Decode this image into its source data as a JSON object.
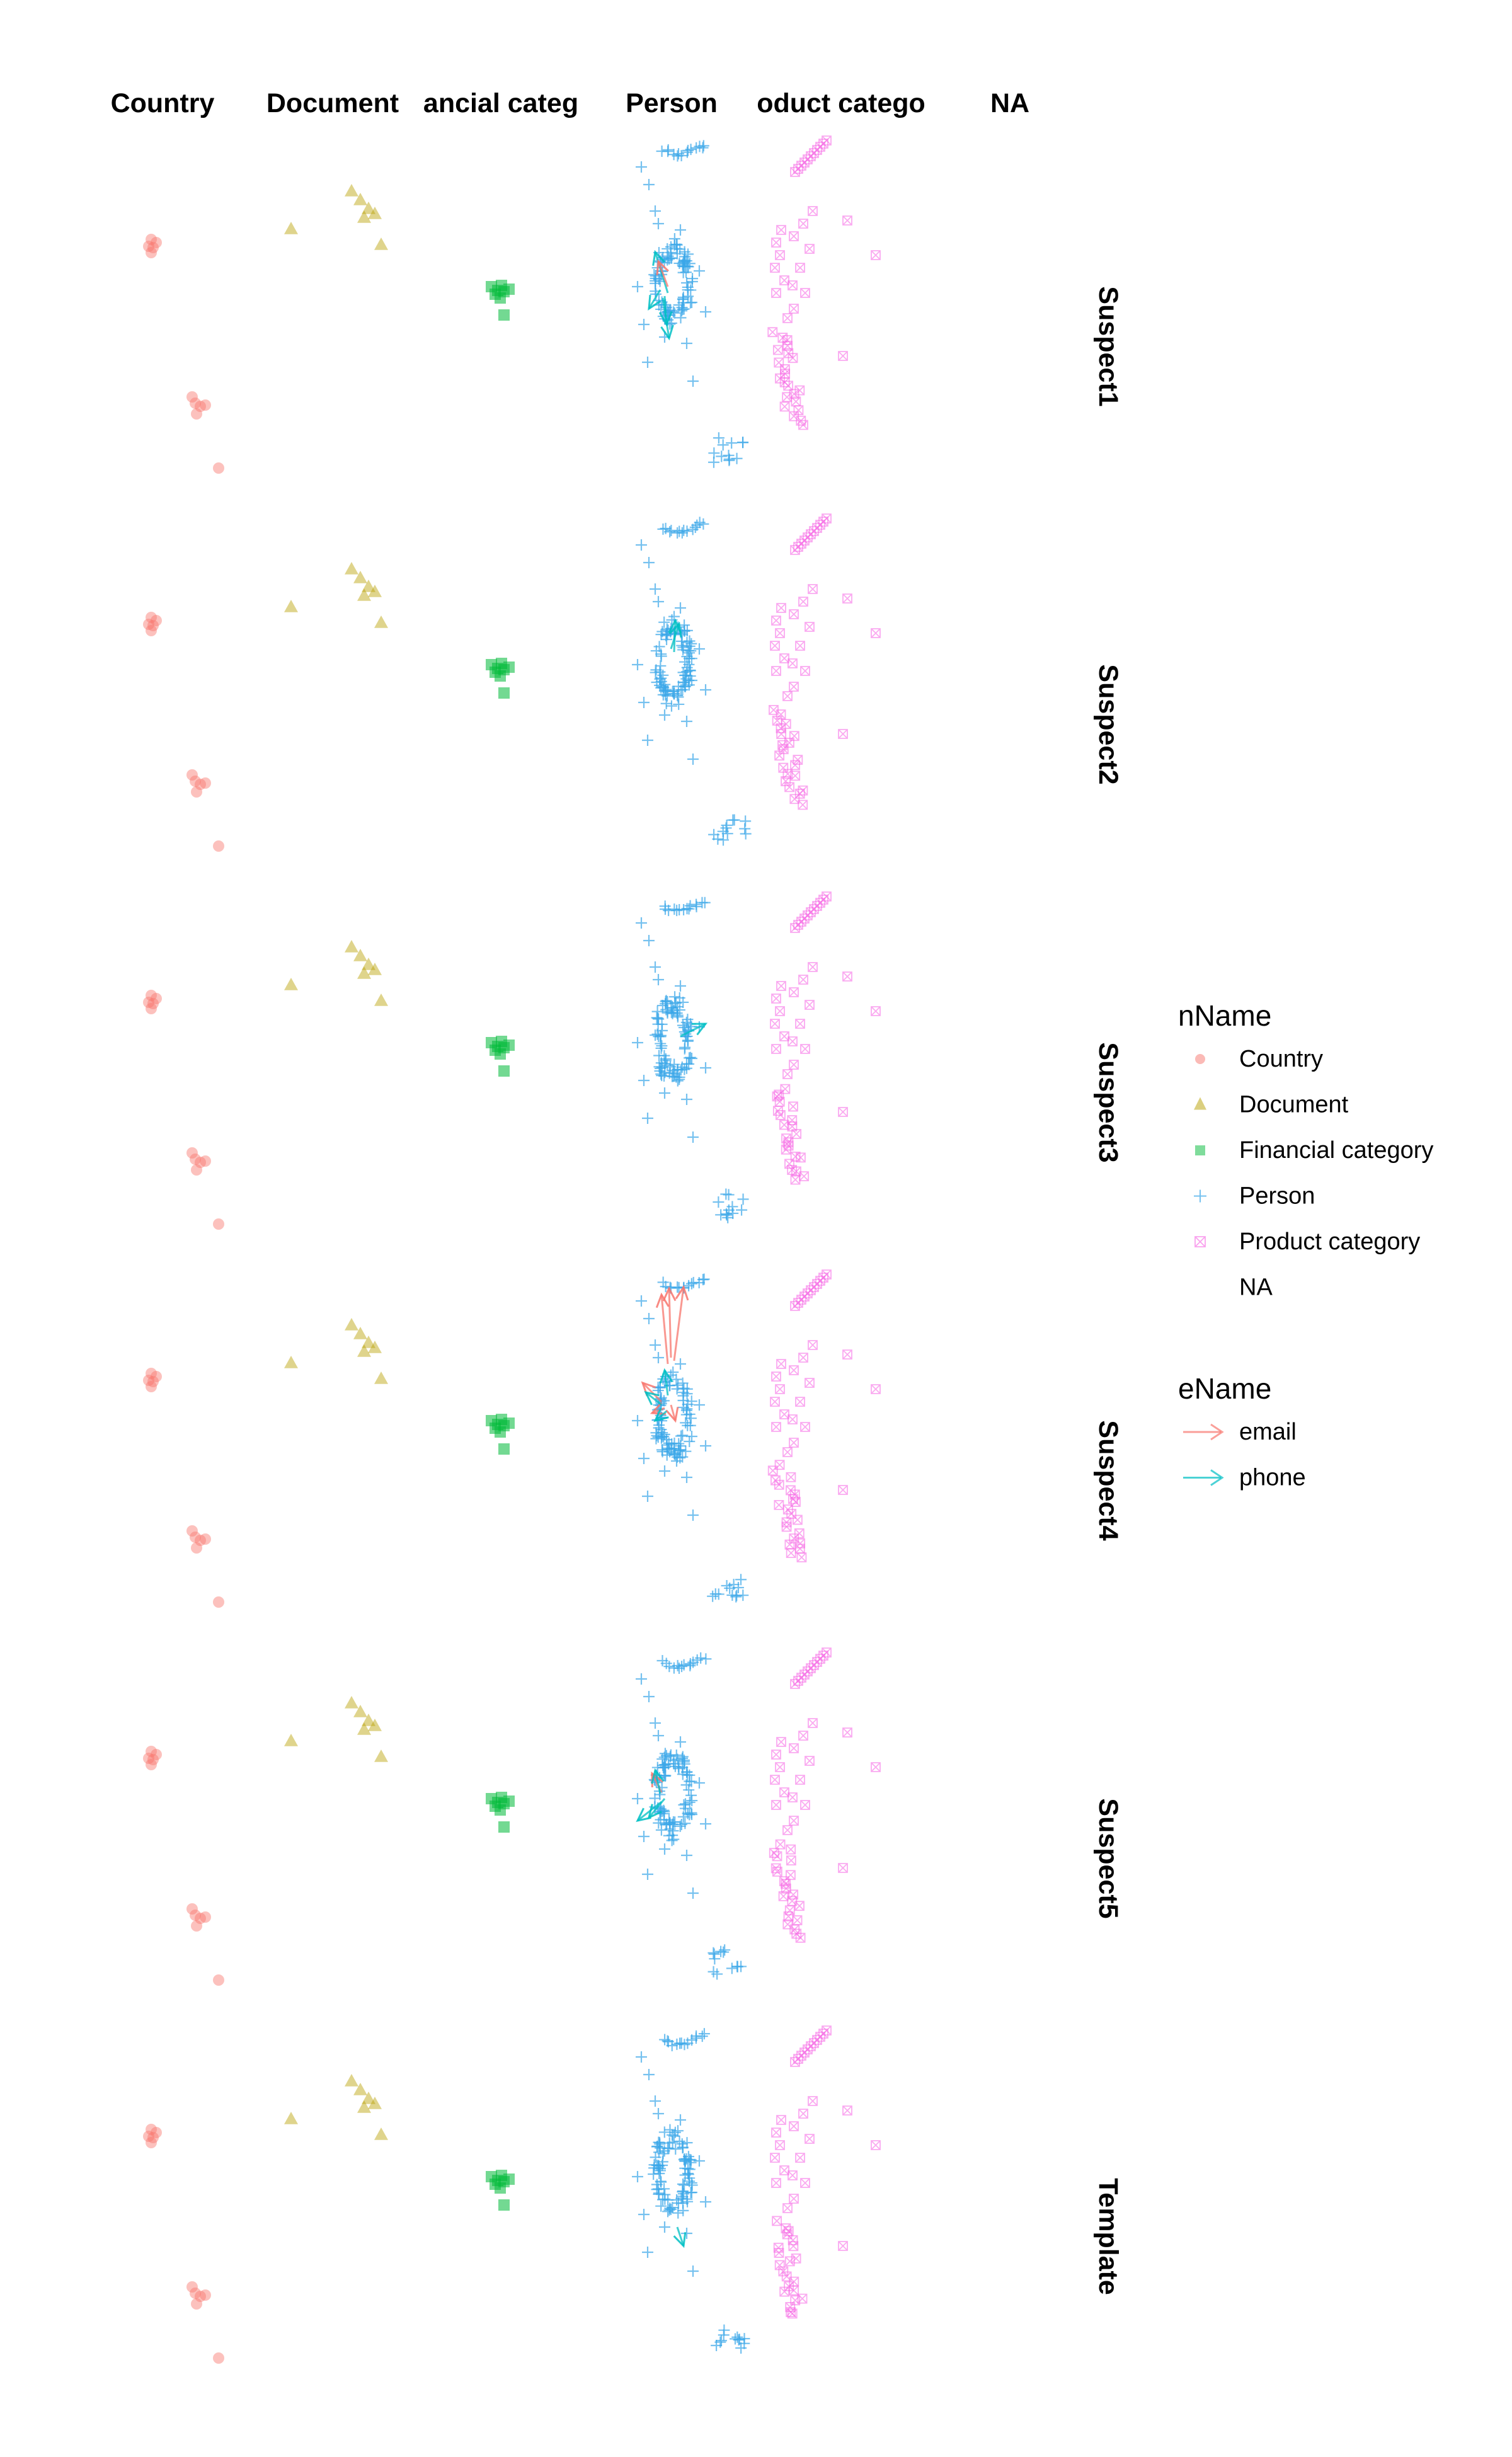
{
  "chart_data": {
    "type": "network-facet",
    "columns": [
      "Country",
      "Document",
      "ancial categ",
      "Person",
      "oduct catego",
      "NA"
    ],
    "rows": [
      "Suspect1",
      "Suspect2",
      "Suspect3",
      "Suspect4",
      "Suspect5",
      "Template"
    ],
    "legend_node": {
      "title": "nName",
      "entries": [
        {
          "label": "Country",
          "color": "#F8766D",
          "shape": "circle"
        },
        {
          "label": "Document",
          "color": "#B79F00",
          "shape": "triangle"
        },
        {
          "label": "Financial category",
          "color": "#00BA38",
          "shape": "square"
        },
        {
          "label": "Person",
          "color": "#00BFC4",
          "shape": "plus"
        },
        {
          "label": "Product category",
          "color": "#F564E3",
          "shape": "boxx"
        },
        {
          "label": "NA",
          "color": "#ffffff",
          "shape": "none"
        }
      ]
    },
    "legend_edge": {
      "title": "eName",
      "entries": [
        {
          "label": "email",
          "color": "#F8766D"
        },
        {
          "label": "phone",
          "color": "#00BFC4"
        }
      ]
    },
    "edges_by_row": [
      {
        "row": "Suspect1",
        "email": 1,
        "phone": 4
      },
      {
        "row": "Suspect2",
        "email": 0,
        "phone": 2
      },
      {
        "row": "Suspect3",
        "email": 0,
        "phone": 1
      },
      {
        "row": "Suspect4",
        "email": 6,
        "phone": 3
      },
      {
        "row": "Suspect5",
        "email": 1,
        "phone": 3
      },
      {
        "row": "Template",
        "email": 0,
        "phone": 1
      }
    ],
    "grid": false,
    "legend_position": "right"
  }
}
